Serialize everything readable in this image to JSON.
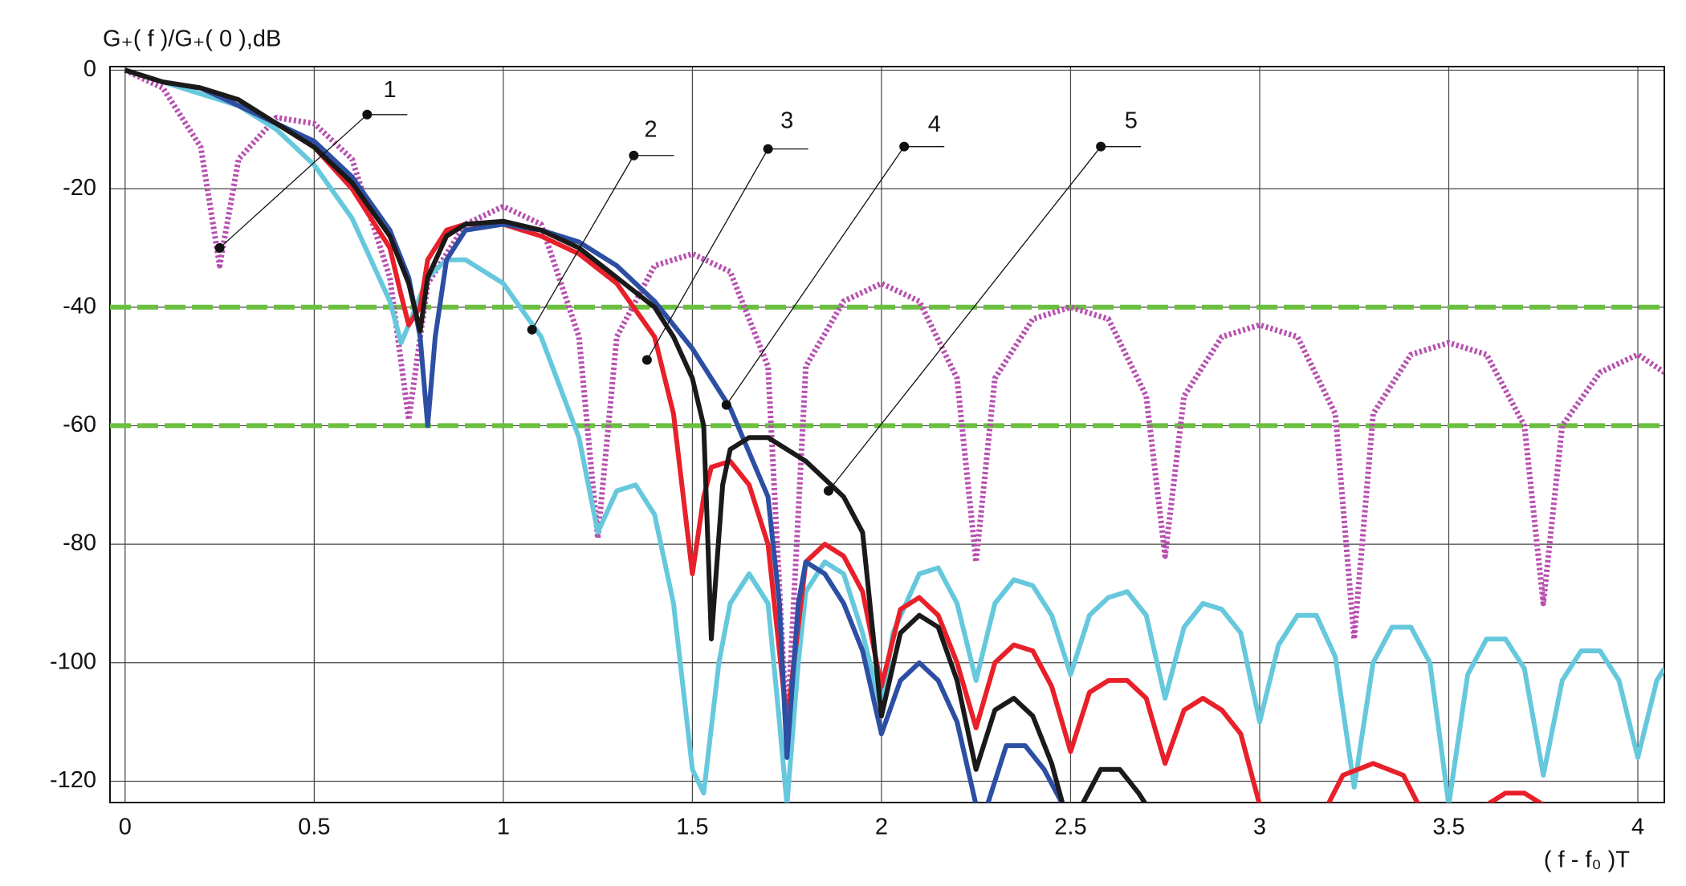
{
  "chart_data": {
    "type": "line",
    "y_label": "G₊( f )/G₊( 0 ),dB",
    "x_label": "( f - f₀ )T",
    "xlim": [
      -0.04,
      4.07
    ],
    "ylim": [
      -123.6,
      0.6
    ],
    "xticks": [
      0,
      0.5,
      1,
      1.5,
      2,
      2.5,
      3,
      3.5,
      4
    ],
    "yticks": [
      0,
      -20,
      -40,
      -60,
      -80,
      -100,
      -120
    ],
    "grid": true,
    "reference_lines": {
      "color": "#6abf3f",
      "values": [
        -40,
        -60
      ]
    },
    "series": [
      {
        "name": "1",
        "color": "#b84fb0",
        "dotted": true,
        "x": [
          0,
          0.1,
          0.2,
          0.25,
          0.3,
          0.4,
          0.5,
          0.6,
          0.7,
          0.75,
          0.8,
          0.9,
          1.0,
          1.1,
          1.2,
          1.25,
          1.3,
          1.4,
          1.5,
          1.6,
          1.7,
          1.75,
          1.8,
          1.9,
          2.0,
          2.1,
          2.2,
          2.25,
          2.3,
          2.4,
          2.5,
          2.6,
          2.7,
          2.75,
          2.8,
          2.9,
          3.0,
          3.1,
          3.2,
          3.25,
          3.3,
          3.4,
          3.5,
          3.6,
          3.7,
          3.75,
          3.8,
          3.9,
          4.0,
          4.07
        ],
        "values": [
          0,
          -3,
          -13,
          -33,
          -15,
          -8,
          -9,
          -15,
          -35,
          -59,
          -36,
          -26,
          -23,
          -26,
          -45,
          -79,
          -45,
          -33,
          -31,
          -34,
          -50,
          -112,
          -50,
          -39,
          -36,
          -39,
          -52,
          -83,
          -52,
          -42,
          -40,
          -42,
          -55,
          -82,
          -55,
          -45,
          -43,
          -45,
          -58,
          -96,
          -58,
          -48,
          -46,
          -48,
          -60,
          -90,
          -60,
          -51,
          -48,
          -51
        ]
      },
      {
        "name": "2",
        "color": "#66c8dc",
        "x": [
          0,
          0.1,
          0.2,
          0.3,
          0.4,
          0.5,
          0.6,
          0.7,
          0.73,
          0.75,
          0.8,
          0.85,
          0.9,
          1.0,
          1.1,
          1.2,
          1.25,
          1.3,
          1.35,
          1.4,
          1.45,
          1.5,
          1.53,
          1.57,
          1.6,
          1.65,
          1.7,
          1.73,
          1.75,
          1.78,
          1.8,
          1.85,
          1.9,
          1.95,
          2.0,
          2.03,
          2.1,
          2.15,
          2.2,
          2.25,
          2.3,
          2.35,
          2.4,
          2.45,
          2.5,
          2.55,
          2.6,
          2.65,
          2.7,
          2.75,
          2.8,
          2.85,
          2.9,
          2.95,
          3.0,
          3.05,
          3.1,
          3.15,
          3.2,
          3.25,
          3.3,
          3.35,
          3.4,
          3.45,
          3.5,
          3.55,
          3.6,
          3.65,
          3.7,
          3.75,
          3.8,
          3.85,
          3.9,
          3.95,
          4.0,
          4.05,
          4.07
        ],
        "values": [
          0,
          -2,
          -4,
          -6,
          -10,
          -16,
          -25,
          -39,
          -46,
          -43,
          -35,
          -32,
          -32,
          -36,
          -45,
          -62,
          -78,
          -71,
          -70,
          -75,
          -90,
          -118,
          -122,
          -100,
          -90,
          -85,
          -90,
          -110,
          -124,
          -100,
          -88,
          -83,
          -85,
          -95,
          -108,
          -95,
          -85,
          -84,
          -90,
          -103,
          -90,
          -86,
          -87,
          -92,
          -102,
          -92,
          -89,
          -88,
          -92,
          -106,
          -94,
          -90,
          -91,
          -95,
          -110,
          -97,
          -92,
          -92,
          -99,
          -121,
          -100,
          -94,
          -94,
          -100,
          -124,
          -102,
          -96,
          -96,
          -101,
          -119,
          -103,
          -98,
          -98,
          -103,
          -116,
          -103,
          -101
        ]
      },
      {
        "name": "3",
        "color": "#e8202a",
        "x": [
          0,
          0.1,
          0.2,
          0.3,
          0.4,
          0.5,
          0.6,
          0.7,
          0.73,
          0.75,
          0.78,
          0.8,
          0.85,
          0.9,
          1.0,
          1.1,
          1.2,
          1.3,
          1.4,
          1.45,
          1.5,
          1.53,
          1.55,
          1.6,
          1.65,
          1.7,
          1.75,
          1.8,
          1.85,
          1.9,
          1.95,
          2.0,
          2.05,
          2.1,
          2.15,
          2.2,
          2.25,
          2.3,
          2.35,
          2.4,
          2.45,
          2.5,
          2.55,
          2.6,
          2.65,
          2.7,
          2.75,
          2.8,
          2.85,
          2.9,
          2.95,
          3.0,
          3.1,
          3.18,
          3.22,
          3.3,
          3.38,
          3.42,
          3.5,
          3.6,
          3.65,
          3.7,
          3.75
        ],
        "values": [
          0,
          -2,
          -3,
          -6,
          -9,
          -13,
          -20,
          -30,
          -38,
          -43,
          -40,
          -32,
          -27,
          -26,
          -26,
          -28,
          -31,
          -36,
          -45,
          -58,
          -85,
          -72,
          -67,
          -66,
          -70,
          -80,
          -110,
          -83,
          -80,
          -82,
          -88,
          -104,
          -91,
          -89,
          -92,
          -100,
          -111,
          -100,
          -97,
          -98,
          -104,
          -115,
          -105,
          -103,
          -103,
          -106,
          -117,
          -108,
          -106,
          -108,
          -112,
          -124,
          null,
          -124,
          -119,
          -117,
          -119,
          -124,
          null,
          -124,
          -122,
          -122,
          -124
        ]
      },
      {
        "name": "4",
        "color": "#2d4fa3",
        "x": [
          0,
          0.1,
          0.2,
          0.3,
          0.4,
          0.5,
          0.6,
          0.7,
          0.75,
          0.78,
          0.8,
          0.82,
          0.85,
          0.9,
          1.0,
          1.1,
          1.2,
          1.3,
          1.4,
          1.5,
          1.6,
          1.7,
          1.73,
          1.75,
          1.78,
          1.8,
          1.85,
          1.9,
          1.95,
          2.0,
          2.05,
          2.1,
          2.15,
          2.2,
          2.25,
          2.27,
          2.28,
          2.33,
          2.38,
          2.43,
          2.48
        ],
        "values": [
          0,
          -2,
          -3,
          -6,
          -9,
          -12,
          -18,
          -27,
          -35,
          -45,
          -60,
          -45,
          -32,
          -27,
          -26,
          -27,
          -29,
          -33,
          -39,
          -47,
          -57,
          -72,
          -90,
          -116,
          -90,
          -83,
          -85,
          -90,
          -98,
          -112,
          -103,
          -100,
          -103,
          -110,
          -124,
          null,
          -124,
          -114,
          -114,
          -118,
          -124
        ]
      },
      {
        "name": "5",
        "color": "#1a1a1a",
        "x": [
          0,
          0.1,
          0.2,
          0.3,
          0.4,
          0.5,
          0.6,
          0.7,
          0.75,
          0.78,
          0.8,
          0.85,
          0.9,
          1.0,
          1.1,
          1.2,
          1.3,
          1.4,
          1.45,
          1.5,
          1.53,
          1.55,
          1.58,
          1.6,
          1.65,
          1.7,
          1.8,
          1.9,
          1.95,
          2.0,
          2.05,
          2.1,
          2.15,
          2.2,
          2.25,
          2.3,
          2.35,
          2.4,
          2.45,
          2.48,
          2.5,
          2.53,
          2.58,
          2.63,
          2.68,
          2.7
        ],
        "values": [
          0,
          -2,
          -3,
          -5,
          -9,
          -13,
          -19,
          -28,
          -36,
          -44,
          -35,
          -28,
          -26,
          -25.5,
          -27,
          -30,
          -35,
          -40,
          -45,
          -52,
          -60,
          -96,
          -70,
          -64,
          -62,
          -62,
          -66,
          -72,
          -78,
          -109,
          -95,
          -92,
          -94,
          -103,
          -118,
          -108,
          -106,
          -109,
          -117,
          -124,
          null,
          -124,
          -118,
          -118,
          -122,
          -124
        ]
      }
    ]
  }
}
